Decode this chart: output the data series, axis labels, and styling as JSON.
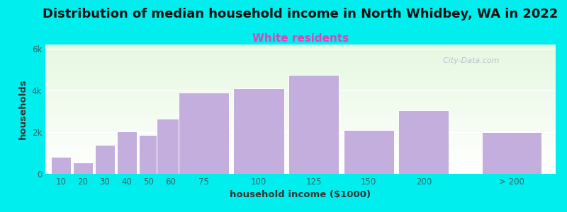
{
  "title": "Distribution of median household income in North Whidbey, WA in 2022",
  "subtitle": "White residents",
  "subtitle_color": "#dd44bb",
  "xlabel": "household income ($1000)",
  "ylabel": "households",
  "background_color": "#00eeee",
  "bar_color": "#c4aedd",
  "categories": [
    "10",
    "20",
    "30",
    "40",
    "50",
    "60",
    "75",
    "100",
    "125",
    "150",
    "200",
    "> 200"
  ],
  "values": [
    800,
    550,
    1400,
    2050,
    1850,
    2650,
    3900,
    4100,
    4750,
    2100,
    3050,
    2000
  ],
  "x_positions": [
    10,
    20,
    30,
    40,
    50,
    60,
    75,
    100,
    125,
    150,
    175,
    215
  ],
  "bar_widths": [
    9,
    9,
    9,
    9,
    9,
    13,
    23,
    23,
    23,
    23,
    23,
    27
  ],
  "xlim": [
    3,
    235
  ],
  "ylim": [
    0,
    6200
  ],
  "yticks": [
    0,
    2000,
    4000,
    6000
  ],
  "ytick_labels": [
    "0",
    "2k",
    "4k",
    "6k"
  ],
  "title_fontsize": 13,
  "subtitle_fontsize": 11,
  "axis_label_fontsize": 9.5,
  "tick_fontsize": 8.5,
  "watermark": "  City-Data.com",
  "tick_color": "#336666",
  "axis_label_color": "#333333",
  "title_color": "#111111"
}
